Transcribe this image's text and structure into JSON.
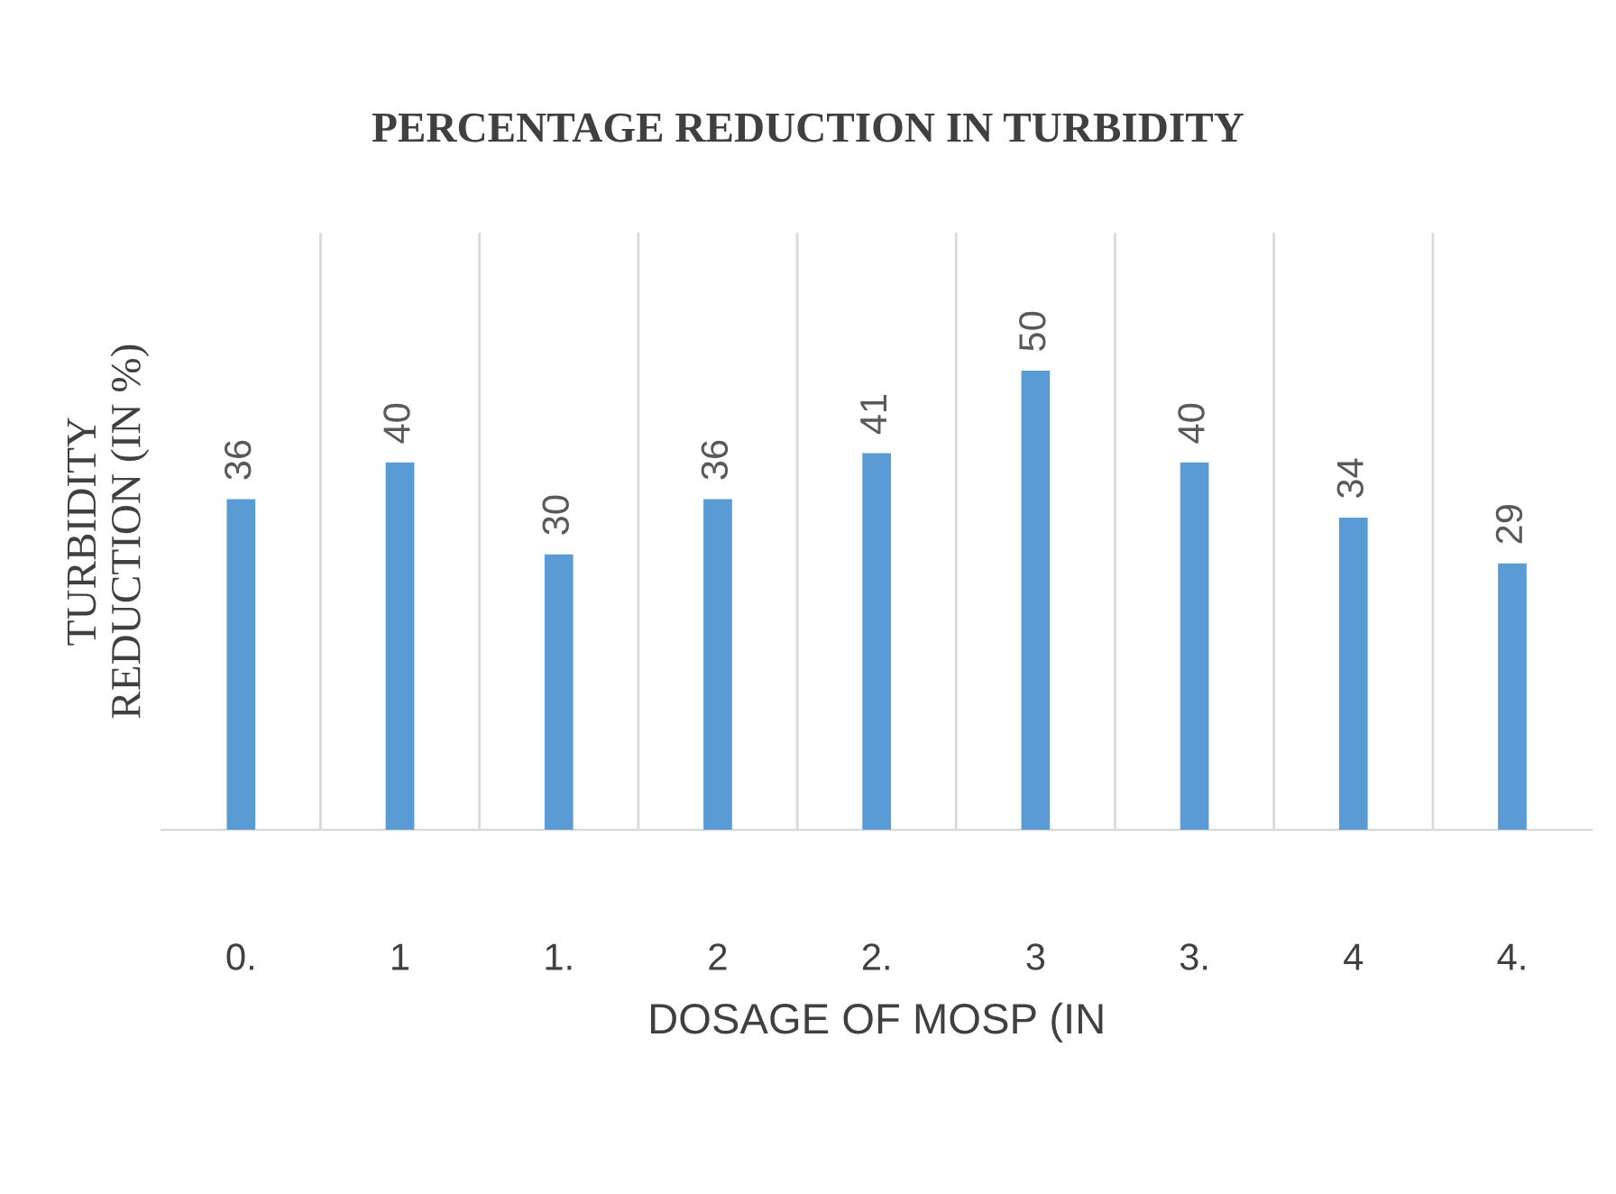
{
  "chart_data": {
    "type": "bar",
    "title": "PERCENTAGE REDUCTION IN TURBIDITY",
    "xlabel": "DOSAGE OF MOSP (IN",
    "ylabel": "TURBIDITY\nREDUCTION (IN %)",
    "categories": [
      "0.",
      "1",
      "1.",
      "2",
      "2.",
      "3",
      "3.",
      "4",
      "4."
    ],
    "values": [
      36,
      40,
      30,
      36,
      41,
      50,
      40,
      34,
      29
    ],
    "color": "#5b9bd5",
    "data_labels": true,
    "grid": "x",
    "legend": false
  }
}
